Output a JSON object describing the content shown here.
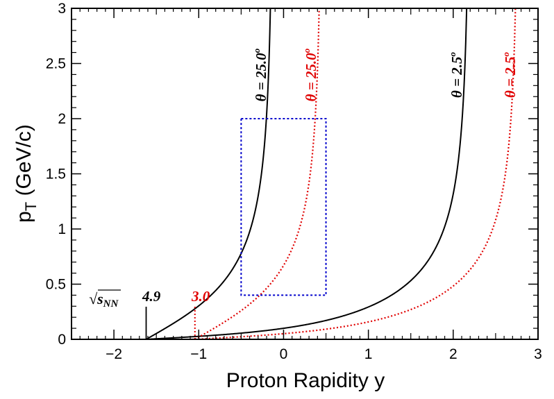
{
  "chart_data": {
    "type": "line",
    "xlabel": "Proton Rapidity y",
    "ylabel_main": "p",
    "ylabel_sub": "T",
    "ylabel_rest": " (GeV/c)",
    "xlim": [
      -2.5,
      3
    ],
    "ylim": [
      0,
      3
    ],
    "x_ticks": [
      "−2",
      "−1",
      "0",
      "1",
      "2",
      "3"
    ],
    "y_ticks": [
      "0",
      "0.5",
      "1",
      "1.5",
      "2",
      "2.5",
      "3"
    ],
    "grid": false,
    "series": [
      {
        "energy": "4.9",
        "theta": "θ = 25.0",
        "theta_deg": 25.0,
        "y_beam": -1.62,
        "color": "#000000",
        "style": "solid"
      },
      {
        "energy": "4.9",
        "theta": "θ = 2.5",
        "theta_deg": 2.5,
        "y_beam": -1.62,
        "color": "#000000",
        "style": "solid"
      },
      {
        "energy": "3.0",
        "theta": "θ = 25.0",
        "theta_deg": 25.0,
        "y_beam": -1.045,
        "color": "#e00000",
        "style": "dotted"
      },
      {
        "energy": "3.0",
        "theta": "θ = 2.5",
        "theta_deg": 2.5,
        "y_beam": -1.045,
        "color": "#e00000",
        "style": "dotted"
      }
    ],
    "acceptance_box": {
      "x": [
        -0.5,
        0.5
      ],
      "y": [
        0.4,
        2.0
      ],
      "color": "#0000cc"
    },
    "annotations": {
      "sqrt_s_label": "√s",
      "sqrt_s_sub": "NN",
      "energy_black": "4.9",
      "energy_red": "3.0",
      "degree_mark": "o"
    }
  }
}
